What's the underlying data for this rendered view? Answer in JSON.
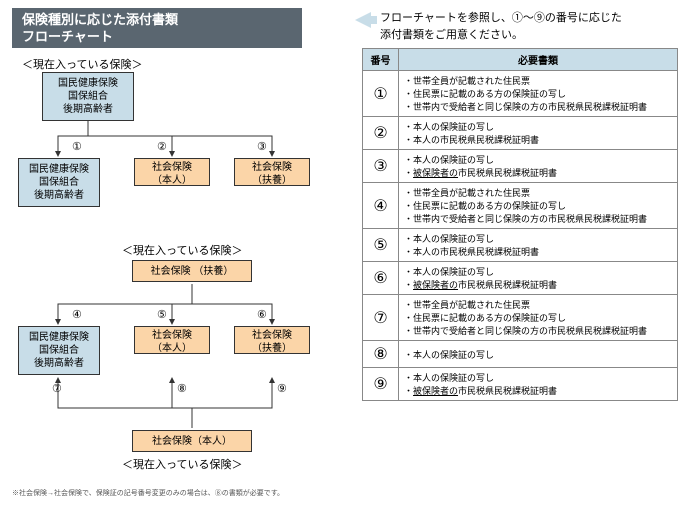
{
  "title_line1": "保険種別に応じた添付書類",
  "title_line2": "フローチャート",
  "instruction_line1": "フローチャートを参照し、①～⑨の番号に応じた",
  "instruction_line2": "添付書類をご用意ください。",
  "bracket_current": "＜現在入っている保険＞",
  "boxes": {
    "a": "国民健康保険\n国保組合\n後期高齢者",
    "b1": "国民健康保険\n国保組合\n後期高齢者",
    "b2": "社会保険\n（本人）",
    "b3": "社会保険\n（扶養）",
    "c": "社会保険 （扶養）",
    "d1": "国民健康保険\n国保組合\n後期高齢者",
    "d2": "社会保険\n（本人）",
    "d3": "社会保険\n（扶養）",
    "e": "社会保険（本人）"
  },
  "circled": {
    "1": "①",
    "2": "②",
    "3": "③",
    "4": "④",
    "5": "⑤",
    "6": "⑥",
    "7": "⑦",
    "8": "⑧",
    "9": "⑨"
  },
  "footnote": "※社会保険→社会保険で、保険証の記号番号変更のみの場合は、⑧の書類が必要です。",
  "table": {
    "head_num": "番号",
    "head_doc": "必要書類",
    "rows": [
      {
        "n": "①",
        "items": [
          "世帯全員が記載された住民票",
          "住民票に記載のある方の保険証の写し",
          "世帯内で受給者と同じ保険の方の市民税県民税課税証明書"
        ]
      },
      {
        "n": "②",
        "items": [
          "本人の保険証の写し",
          "本人の市民税県民税課税証明書"
        ]
      },
      {
        "n": "③",
        "items": [
          "本人の保険証の写し"
        ],
        "under": [
          "被保険者の市民税県民税課税証明書"
        ]
      },
      {
        "n": "④",
        "items": [
          "世帯全員が記載された住民票",
          "住民票に記載のある方の保険証の写し",
          "世帯内で受給者と同じ保険の方の市民税県民税課税証明書"
        ]
      },
      {
        "n": "⑤",
        "items": [
          "本人の保険証の写し",
          "本人の市民税県民税課税証明書"
        ]
      },
      {
        "n": "⑥",
        "items": [
          "本人の保険証の写し"
        ],
        "under": [
          "被保険者の市民税県民税課税証明書"
        ]
      },
      {
        "n": "⑦",
        "items": [
          "世帯全員が記載された住民票",
          "住民票に記載のある方の保険証の写し",
          "世帯内で受給者と同じ保険の方の市民税県民税課税証明書"
        ]
      },
      {
        "n": "⑧",
        "items": [
          "本人の保険証の写し"
        ]
      },
      {
        "n": "⑨",
        "items": [
          "本人の保険証の写し"
        ],
        "under": [
          "被保険者の市民税県民税課税証明書"
        ]
      }
    ]
  }
}
